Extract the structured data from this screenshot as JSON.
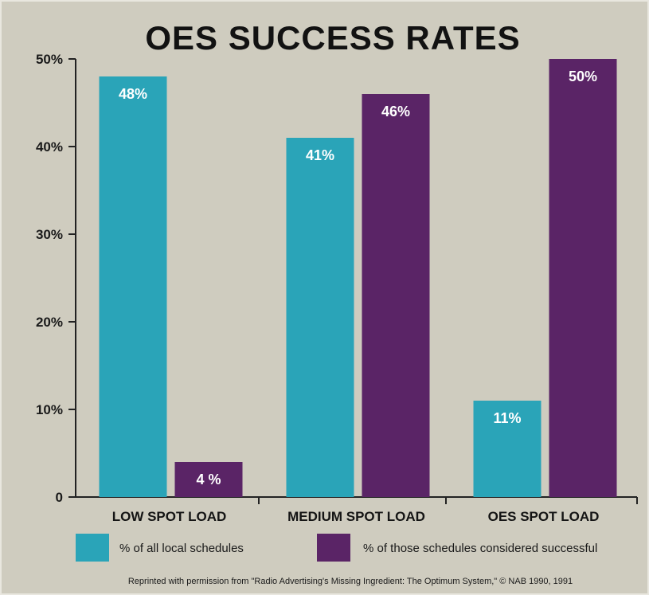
{
  "chart_data": {
    "type": "bar",
    "title": "OES SUCCESS RATES",
    "categories": [
      "LOW SPOT LOAD",
      "MEDIUM SPOT LOAD",
      "OES SPOT LOAD"
    ],
    "series": [
      {
        "name": "% of all local schedules",
        "values": [
          48,
          41,
          11
        ],
        "labels": [
          "48%",
          "41%",
          "11%"
        ],
        "color": "#2aa4b8"
      },
      {
        "name": "% of those schedules considered successful",
        "values": [
          4,
          46,
          50
        ],
        "labels": [
          "4 %",
          "46%",
          "50%"
        ],
        "color": "#5a2466"
      }
    ],
    "ylim": [
      0,
      50
    ],
    "yticks": [
      0,
      10,
      20,
      30,
      40,
      50
    ],
    "ytick_labels": [
      "0",
      "10%",
      "20%",
      "30%",
      "40%",
      "50%"
    ],
    "grid": false,
    "legend_position": "bottom",
    "source": "Reprinted with permission from \"Radio Advertising's Missing Ingredient: The Optimum System,\" © NAB 1990, 1991"
  },
  "colors": {
    "background": "#cfccbf",
    "axis": "#222222"
  }
}
